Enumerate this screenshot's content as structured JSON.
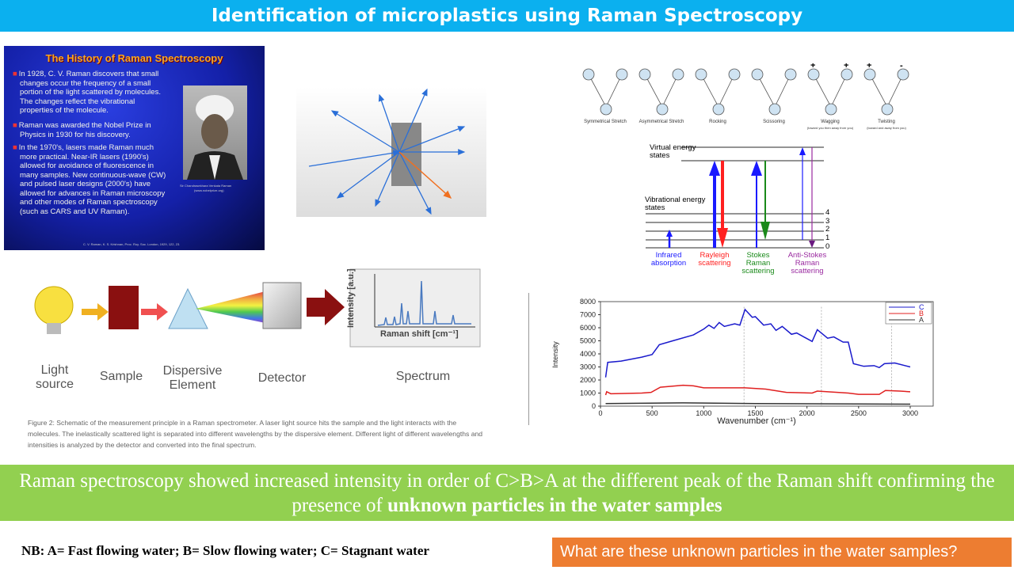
{
  "title": "Identification of microplastics using Raman Spectroscopy",
  "history": {
    "heading": "The History of Raman Spectroscopy",
    "bullets": [
      "In 1928, C. V. Raman discovers that small changes occur the frequency of a small portion of the light scattered by molecules. The changes reflect the vibrational properties of the molecule.",
      "Raman was awarded the Nobel Prize in Physics in 1930 for his discovery.",
      "In the 1970's, lasers made Raman much more practical. Near-IR lasers (1990's) allowed for avoidance of fluorescence in many samples. New continuous-wave (CW) and pulsed laser designs (2000's) have allowed for advances in Raman microscopy and other modes of Raman spectroscopy (such as CARS and UV Raman)."
    ],
    "photo_caption": "Sir Chandrasekhara Venkata Raman",
    "photo_source": "(www.nobelprize.org)",
    "citation": "C. V. Raman, K. S. Krishnan, Proc. Roy. Soc. London, 1929, 122, 23."
  },
  "vibration_modes": [
    {
      "name": "Symmetrical Stretch",
      "sub": ""
    },
    {
      "name": "Asymmetrical Stretch",
      "sub": ""
    },
    {
      "name": "Rocking",
      "sub": ""
    },
    {
      "name": "Scissoring",
      "sub": ""
    },
    {
      "name": "Wagging",
      "sub": "(toward you then away from you)",
      "signs": [
        "+",
        "+"
      ]
    },
    {
      "name": "Twisting",
      "sub": "(toward and away from you)",
      "signs": [
        "+",
        "-"
      ]
    }
  ],
  "energy": {
    "virtual": "Virtual energy states",
    "vibrational": "Vibrational energy states",
    "levels": [
      "4",
      "3",
      "2",
      "1",
      "0"
    ],
    "labels": [
      {
        "text": "Infrared absorption",
        "color": "#1a1aff"
      },
      {
        "text": "Rayleigh scattering",
        "color": "#ff2020"
      },
      {
        "text": "Stokes Raman scattering",
        "color": "#1a8a1a"
      },
      {
        "text": "Anti-Stokes Raman scattering",
        "color": "#9a2aa0"
      }
    ]
  },
  "schematic": {
    "labels": [
      "Light source",
      "Sample",
      "Dispersive Element",
      "Detector",
      "Spectrum"
    ],
    "y_axis": "Intensity [a.u.]",
    "x_axis": "Raman shift [cm⁻¹]",
    "caption": "Figure 2: Schematic of the measurement principle in a Raman spectrometer. A laser light source hits the sample and the light interacts with the molecules. The inelastically scattered light is separated into different wavelengths by the dispersive element. Different light of different wavelengths and intensities is analyzed by the detector and converted into the final spectrum."
  },
  "chart_data": {
    "type": "line",
    "xlabel": "Wavenumber (cm⁻¹)",
    "ylabel": "Intensity",
    "xlim": [
      0,
      3000
    ],
    "ylim": [
      0,
      8000
    ],
    "xticks": [
      0,
      500,
      1000,
      1500,
      2000,
      2500,
      3000
    ],
    "yticks": [
      0,
      1000,
      2000,
      3000,
      4000,
      5000,
      6000,
      7000,
      8000
    ],
    "legend": "top-right",
    "reference_lines": [
      1390,
      2140,
      2820
    ],
    "series": [
      {
        "name": "C",
        "color": "#1a1acc",
        "points": [
          [
            50,
            2200
          ],
          [
            70,
            3350
          ],
          [
            200,
            3450
          ],
          [
            400,
            3750
          ],
          [
            500,
            3950
          ],
          [
            570,
            4700
          ],
          [
            700,
            5000
          ],
          [
            900,
            5450
          ],
          [
            1000,
            5900
          ],
          [
            1050,
            6200
          ],
          [
            1100,
            5950
          ],
          [
            1150,
            6400
          ],
          [
            1200,
            6100
          ],
          [
            1300,
            6300
          ],
          [
            1350,
            6200
          ],
          [
            1400,
            7400
          ],
          [
            1470,
            6800
          ],
          [
            1500,
            6850
          ],
          [
            1580,
            6200
          ],
          [
            1650,
            6300
          ],
          [
            1700,
            5800
          ],
          [
            1760,
            6100
          ],
          [
            1850,
            5500
          ],
          [
            1900,
            5600
          ],
          [
            2050,
            4950
          ],
          [
            2100,
            5850
          ],
          [
            2200,
            5200
          ],
          [
            2260,
            5300
          ],
          [
            2350,
            4900
          ],
          [
            2400,
            4900
          ],
          [
            2450,
            3250
          ],
          [
            2550,
            3050
          ],
          [
            2650,
            3100
          ],
          [
            2700,
            2950
          ],
          [
            2750,
            3250
          ],
          [
            2850,
            3300
          ],
          [
            3000,
            3000
          ]
        ]
      },
      {
        "name": "B",
        "color": "#e02020",
        "points": [
          [
            50,
            850
          ],
          [
            60,
            1100
          ],
          [
            100,
            950
          ],
          [
            400,
            1000
          ],
          [
            490,
            1050
          ],
          [
            580,
            1450
          ],
          [
            800,
            1600
          ],
          [
            900,
            1550
          ],
          [
            1000,
            1400
          ],
          [
            1200,
            1400
          ],
          [
            1400,
            1400
          ],
          [
            1600,
            1300
          ],
          [
            1800,
            1050
          ],
          [
            2050,
            1000
          ],
          [
            2100,
            1150
          ],
          [
            2400,
            1000
          ],
          [
            2500,
            900
          ],
          [
            2700,
            900
          ],
          [
            2760,
            1200
          ],
          [
            2900,
            1150
          ],
          [
            3000,
            1100
          ]
        ]
      },
      {
        "name": "A",
        "color": "#333333",
        "points": [
          [
            50,
            200
          ],
          [
            800,
            250
          ],
          [
            1500,
            200
          ],
          [
            3000,
            150
          ]
        ]
      }
    ]
  },
  "banner": {
    "text": "Raman spectroscopy showed increased intensity in order of C>B>A at the different peak of the Raman shift confirming the presence of ",
    "bold": "unknown particles in the water samples"
  },
  "nb": "NB: A= Fast flowing water; B= Slow flowing water; C= Stagnant water",
  "question": "What are these unknown particles in the water samples?"
}
